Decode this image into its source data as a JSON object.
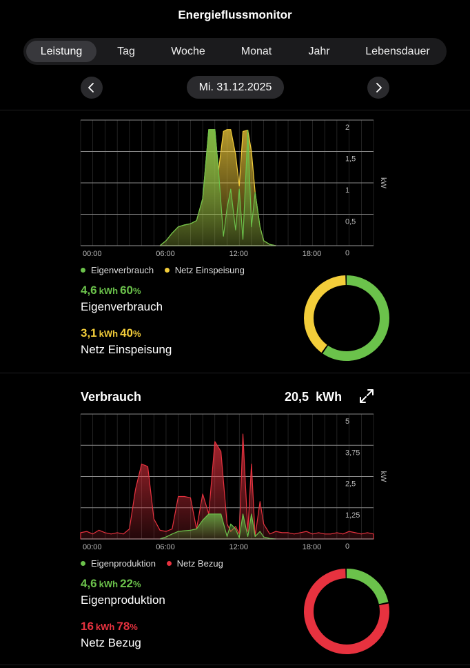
{
  "header": {
    "title": "Energieflussmonitor"
  },
  "tabs": [
    {
      "label": "Leistung",
      "active": true
    },
    {
      "label": "Tag"
    },
    {
      "label": "Woche"
    },
    {
      "label": "Monat"
    },
    {
      "label": "Jahr"
    },
    {
      "label": "Lebensdauer"
    }
  ],
  "date": {
    "label": "Mi. 31.12.2025"
  },
  "production": {
    "legend": [
      {
        "label": "Eigenverbrauch",
        "color": "#6bc24b"
      },
      {
        "label": "Netz Einspeisung",
        "color": "#f3cd3a"
      }
    ],
    "stat1": {
      "value": "4,6",
      "unit": "kWh",
      "percent": "60",
      "pct_sign": "%",
      "label": "Eigenverbrauch"
    },
    "stat2": {
      "value": "3,1",
      "unit": "kWh",
      "percent": "40",
      "pct_sign": "%",
      "label": "Netz Einspeisung"
    },
    "donut": {
      "segments": [
        {
          "name": "Eigenverbrauch",
          "value": 60,
          "color": "#6bc24b"
        },
        {
          "name": "Netz Einspeisung",
          "value": 40,
          "color": "#f3cd3a"
        }
      ]
    }
  },
  "consumption": {
    "title": "Verbrauch",
    "total_value": "20,5",
    "total_unit": "kWh",
    "legend": [
      {
        "label": "Eigenproduktion",
        "color": "#6bc24b"
      },
      {
        "label": "Netz Bezug",
        "color": "#e7323f"
      }
    ],
    "stat1": {
      "value": "4,6",
      "unit": "kWh",
      "percent": "22",
      "pct_sign": "%",
      "label": "Eigenproduktion"
    },
    "stat2": {
      "value": "16",
      "unit": "kWh",
      "percent": "78",
      "pct_sign": "%",
      "label": "Netz Bezug"
    },
    "donut": {
      "segments": [
        {
          "name": "Eigenproduktion",
          "value": 22,
          "color": "#6bc24b"
        },
        {
          "name": "Netz Bezug",
          "value": 78,
          "color": "#e7323f"
        }
      ]
    }
  },
  "chart_data": [
    {
      "type": "area",
      "ylabel": "kW",
      "ylim": [
        0,
        2
      ],
      "yticks": [
        {
          "value": 0,
          "label": "0"
        },
        {
          "value": 0.5,
          "label": "0,5"
        },
        {
          "value": 1,
          "label": "1"
        },
        {
          "value": 1.5,
          "label": "1,5"
        },
        {
          "value": 2,
          "label": "2"
        }
      ],
      "xlim": [
        0,
        24
      ],
      "xticks": [
        {
          "value": 0,
          "label": "00:00"
        },
        {
          "value": 6,
          "label": "06:00"
        },
        {
          "value": 12,
          "label": "12:00"
        },
        {
          "value": 18,
          "label": "18:00"
        }
      ],
      "grid": true,
      "series": [
        {
          "name": "Netz Einspeisung",
          "color": "#f3cd3a",
          "x": [
            6.5,
            7,
            7.5,
            8,
            8.5,
            9,
            9.5,
            10,
            10.5,
            11,
            11.3,
            11.7,
            12,
            12.3,
            12.7,
            13,
            13.3,
            13.7,
            14,
            14.3,
            14.7,
            15,
            15.5,
            16
          ],
          "y": [
            0.0,
            0.08,
            0.2,
            0.3,
            0.33,
            0.35,
            0.4,
            0.75,
            1.85,
            1.85,
            1.2,
            1.82,
            1.85,
            1.85,
            1.45,
            0.95,
            1.82,
            1.84,
            1.5,
            0.85,
            0.3,
            0.08,
            0.02,
            0
          ]
        },
        {
          "name": "Eigenverbrauch",
          "color": "#6bc24b",
          "x": [
            6.5,
            7,
            7.5,
            8,
            8.5,
            9,
            9.5,
            10,
            10.5,
            11,
            11.3,
            11.7,
            12,
            12.3,
            12.7,
            13,
            13.3,
            13.7,
            14,
            14.3,
            14.7,
            15,
            15.5,
            16
          ],
          "y": [
            0.0,
            0.08,
            0.2,
            0.3,
            0.33,
            0.35,
            0.4,
            0.75,
            1.85,
            1.85,
            1.2,
            0.15,
            0.6,
            0.9,
            0.25,
            0.9,
            0.1,
            1.84,
            0.3,
            0.85,
            0.3,
            0.08,
            0.02,
            0
          ]
        }
      ]
    },
    {
      "type": "area",
      "ylabel": "kW",
      "ylim": [
        0,
        5
      ],
      "yticks": [
        {
          "value": 0,
          "label": "0"
        },
        {
          "value": 1.25,
          "label": "1,25"
        },
        {
          "value": 2.5,
          "label": "2,5"
        },
        {
          "value": 3.75,
          "label": "3,75"
        },
        {
          "value": 5,
          "label": "5"
        }
      ],
      "xlim": [
        0,
        24
      ],
      "xticks": [
        {
          "value": 0,
          "label": "00:00"
        },
        {
          "value": 6,
          "label": "06:00"
        },
        {
          "value": 12,
          "label": "12:00"
        },
        {
          "value": 18,
          "label": "18:00"
        }
      ],
      "grid": true,
      "series": [
        {
          "name": "Netz Bezug",
          "color": "#e7323f",
          "x": [
            0,
            0.5,
            1,
            1.5,
            2,
            2.5,
            3,
            3.5,
            4,
            4.5,
            5,
            5.5,
            6,
            6.5,
            7,
            7.5,
            8,
            8.5,
            9,
            9.5,
            10,
            10.5,
            11,
            11.5,
            12,
            12.3,
            12.7,
            13,
            13.3,
            13.7,
            14,
            14.3,
            14.7,
            15,
            15.5,
            16,
            16.5,
            17,
            17.5,
            18,
            18.5,
            19,
            19.5,
            20,
            20.5,
            21,
            21.5,
            22,
            22.5,
            23,
            23.5,
            24
          ],
          "y": [
            0.25,
            0.3,
            0.2,
            0.35,
            0.25,
            0.2,
            0.25,
            0.2,
            0.4,
            2.0,
            3.0,
            2.9,
            0.8,
            0.35,
            0.3,
            0.4,
            1.7,
            1.7,
            1.65,
            0.4,
            1.8,
            1.0,
            3.9,
            3.5,
            0.6,
            0.3,
            0.5,
            0.2,
            4.2,
            0.3,
            3.0,
            0.1,
            1.5,
            0.6,
            0.2,
            0.3,
            0.25,
            0.25,
            0.2,
            0.25,
            0.3,
            0.2,
            0.25,
            0.2,
            0.2,
            0.25,
            0.2,
            0.3,
            0.25,
            0.2,
            0.25,
            0.2
          ]
        },
        {
          "name": "Eigenproduktion",
          "color": "#6bc24b",
          "x": [
            6.5,
            7,
            7.5,
            8,
            8.5,
            9,
            9.5,
            10,
            10.5,
            11,
            11.5,
            12,
            12.3,
            12.7,
            13,
            13.3,
            13.7,
            14,
            14.3,
            14.7,
            15,
            15.5,
            16
          ],
          "y": [
            0.0,
            0.08,
            0.2,
            0.3,
            0.33,
            0.35,
            0.4,
            0.75,
            1.0,
            1.0,
            1.0,
            0.1,
            0.6,
            0.4,
            0.05,
            1.0,
            0.1,
            1.0,
            0.1,
            0.3,
            0.08,
            0.02,
            0
          ]
        }
      ]
    }
  ]
}
